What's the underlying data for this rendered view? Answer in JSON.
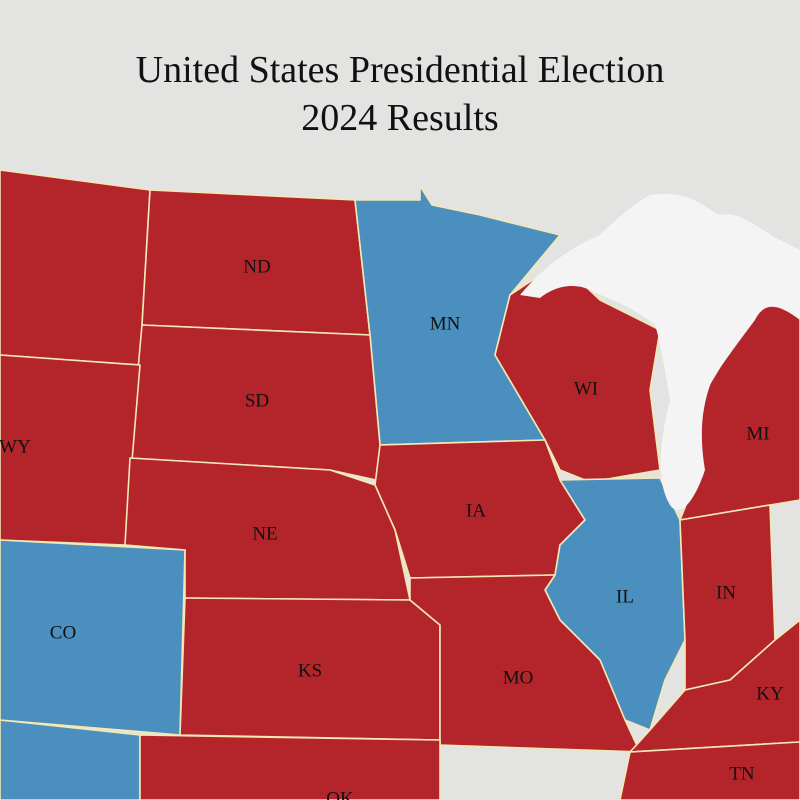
{
  "header": {
    "title": "United States Presidential Election",
    "subtitle": "2024 Results"
  },
  "states": [
    {
      "label": "ND",
      "color": "#b3252b"
    },
    {
      "label": "MN",
      "color": "#4b8fbe"
    },
    {
      "label": "SD",
      "color": "#b3252b"
    },
    {
      "label": "WI",
      "color": "#b3252b"
    },
    {
      "label": "WY",
      "color": "#b3252b"
    },
    {
      "label": "MI",
      "color": "#b3252b"
    },
    {
      "label": "IA",
      "color": "#b3252b"
    },
    {
      "label": "NE",
      "color": "#b3252b"
    },
    {
      "label": "IL",
      "color": "#4b8fbe"
    },
    {
      "label": "IN",
      "color": "#b3252b"
    },
    {
      "label": "CO",
      "color": "#4b8fbe"
    },
    {
      "label": "KS",
      "color": "#b3252b"
    },
    {
      "label": "MO",
      "color": "#b3252b"
    },
    {
      "label": "KY",
      "color": "#b3252b"
    },
    {
      "label": "TN",
      "color": "#b3252b"
    },
    {
      "label": "OK",
      "color": "#b3252b"
    }
  ]
}
